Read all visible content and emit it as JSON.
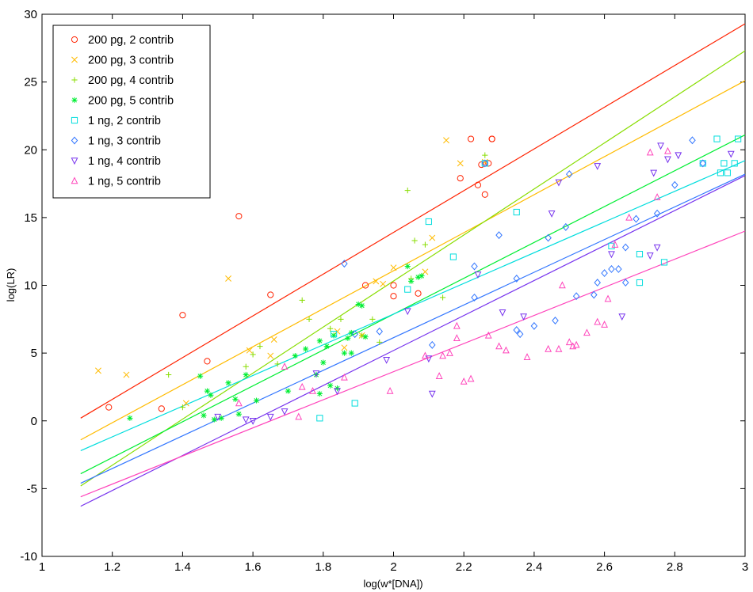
{
  "chart_data": {
    "type": "scatter",
    "title": "",
    "xlabel": "log(w*[DNA])",
    "ylabel": "log(LR)",
    "xlim": [
      1,
      3
    ],
    "ylim": [
      -10,
      30
    ],
    "xticks": [
      "1",
      "1.2",
      "1.4",
      "1.6",
      "1.8",
      "2",
      "2.2",
      "2.4",
      "2.6",
      "2.8",
      "3"
    ],
    "yticks": [
      "-10",
      "-5",
      "0",
      "5",
      "10",
      "15",
      "20",
      "25",
      "30"
    ],
    "grid": false,
    "legend_position": "top-left",
    "series": [
      {
        "name": "200 pg, 2 contrib",
        "color": "#ff2200",
        "marker": "circle",
        "points": [
          [
            1.19,
            1.0
          ],
          [
            1.34,
            0.9
          ],
          [
            1.4,
            7.8
          ],
          [
            1.47,
            4.4
          ],
          [
            1.56,
            15.1
          ],
          [
            1.65,
            9.3
          ],
          [
            1.92,
            10.0
          ],
          [
            2.0,
            10.0
          ],
          [
            2.0,
            9.2
          ],
          [
            2.07,
            9.4
          ],
          [
            2.19,
            17.9
          ],
          [
            2.22,
            20.8
          ],
          [
            2.24,
            17.4
          ],
          [
            2.25,
            18.9
          ],
          [
            2.26,
            16.7
          ],
          [
            2.27,
            19.0
          ],
          [
            2.28,
            20.8
          ],
          [
            2.28,
            20.8
          ]
        ],
        "fit": [
          [
            1.11,
            0.2
          ],
          [
            3.0,
            29.3
          ]
        ]
      },
      {
        "name": "200 pg, 3 contrib",
        "color": "#ffbb00",
        "marker": "x",
        "points": [
          [
            1.16,
            3.7
          ],
          [
            1.24,
            3.4
          ],
          [
            1.41,
            1.3
          ],
          [
            1.53,
            10.5
          ],
          [
            1.59,
            5.2
          ],
          [
            1.65,
            4.8
          ],
          [
            1.66,
            6.0
          ],
          [
            1.84,
            6.6
          ],
          [
            1.86,
            5.4
          ],
          [
            1.91,
            6.3
          ],
          [
            1.95,
            10.3
          ],
          [
            1.97,
            10.1
          ],
          [
            2.0,
            11.3
          ],
          [
            2.09,
            11.0
          ],
          [
            2.11,
            13.5
          ],
          [
            2.15,
            20.7
          ],
          [
            2.19,
            19.0
          ],
          [
            2.26,
            19.1
          ]
        ],
        "fit": [
          [
            1.11,
            -1.4
          ],
          [
            3.0,
            25.1
          ]
        ]
      },
      {
        "name": "200 pg, 4 contrib",
        "color": "#88dd00",
        "marker": "plus",
        "points": [
          [
            1.36,
            3.4
          ],
          [
            1.4,
            1.0
          ],
          [
            1.58,
            4.0
          ],
          [
            1.6,
            4.9
          ],
          [
            1.62,
            5.5
          ],
          [
            1.67,
            4.2
          ],
          [
            1.74,
            8.9
          ],
          [
            1.76,
            7.5
          ],
          [
            1.82,
            6.8
          ],
          [
            1.85,
            7.5
          ],
          [
            1.91,
            6.3
          ],
          [
            1.94,
            7.5
          ],
          [
            1.96,
            5.8
          ],
          [
            2.04,
            17.0
          ],
          [
            2.05,
            10.5
          ],
          [
            2.06,
            13.3
          ],
          [
            2.09,
            13.0
          ],
          [
            2.14,
            9.1
          ],
          [
            2.26,
            19.6
          ]
        ],
        "fit": [
          [
            1.11,
            -4.8
          ],
          [
            3.0,
            27.3
          ]
        ]
      },
      {
        "name": "200 pg, 5 contrib",
        "color": "#00ee33",
        "marker": "star",
        "points": [
          [
            1.25,
            0.2
          ],
          [
            1.45,
            3.3
          ],
          [
            1.46,
            0.4
          ],
          [
            1.47,
            2.2
          ],
          [
            1.48,
            1.9
          ],
          [
            1.49,
            0.1
          ],
          [
            1.51,
            0.2
          ],
          [
            1.53,
            2.8
          ],
          [
            1.55,
            1.6
          ],
          [
            1.56,
            0.5
          ],
          [
            1.58,
            3.4
          ],
          [
            1.61,
            1.5
          ],
          [
            1.7,
            2.2
          ],
          [
            1.72,
            4.8
          ],
          [
            1.75,
            5.3
          ],
          [
            1.78,
            3.4
          ],
          [
            1.79,
            5.9
          ],
          [
            1.79,
            2.0
          ],
          [
            1.8,
            4.3
          ],
          [
            1.81,
            5.5
          ],
          [
            1.82,
            2.6
          ],
          [
            1.83,
            6.3
          ],
          [
            1.84,
            2.4
          ],
          [
            1.86,
            5.0
          ],
          [
            1.87,
            6.1
          ],
          [
            1.88,
            5.0
          ],
          [
            1.88,
            6.5
          ],
          [
            1.9,
            8.6
          ],
          [
            1.91,
            8.5
          ],
          [
            1.92,
            6.2
          ],
          [
            2.04,
            11.4
          ],
          [
            2.05,
            10.3
          ],
          [
            2.07,
            10.6
          ],
          [
            2.08,
            10.7
          ]
        ],
        "fit": [
          [
            1.11,
            -3.9
          ],
          [
            3.0,
            21.1
          ]
        ]
      },
      {
        "name": "1 ng, 2 contrib",
        "color": "#00dddd",
        "marker": "square",
        "points": [
          [
            1.79,
            0.2
          ],
          [
            1.83,
            6.4
          ],
          [
            1.89,
            1.3
          ],
          [
            2.04,
            9.7
          ],
          [
            2.1,
            14.7
          ],
          [
            2.17,
            12.1
          ],
          [
            2.26,
            19.0
          ],
          [
            2.35,
            15.4
          ],
          [
            2.62,
            12.9
          ],
          [
            2.7,
            12.3
          ],
          [
            2.7,
            10.2
          ],
          [
            2.77,
            11.7
          ],
          [
            2.88,
            19.0
          ],
          [
            2.92,
            20.8
          ],
          [
            2.93,
            18.3
          ],
          [
            2.94,
            19.0
          ],
          [
            2.95,
            18.3
          ],
          [
            2.97,
            19.0
          ],
          [
            2.98,
            20.8
          ]
        ],
        "fit": [
          [
            1.11,
            -2.2
          ],
          [
            3.0,
            19.2
          ]
        ]
      },
      {
        "name": "1 ng, 3 contrib",
        "color": "#3377ff",
        "marker": "diamond",
        "points": [
          [
            1.86,
            11.6
          ],
          [
            1.89,
            6.4
          ],
          [
            1.96,
            6.6
          ],
          [
            2.11,
            5.6
          ],
          [
            2.23,
            9.1
          ],
          [
            2.23,
            11.4
          ],
          [
            2.26,
            19.0
          ],
          [
            2.3,
            13.7
          ],
          [
            2.35,
            10.5
          ],
          [
            2.35,
            6.7
          ],
          [
            2.36,
            6.4
          ],
          [
            2.4,
            7.0
          ],
          [
            2.44,
            13.5
          ],
          [
            2.46,
            7.4
          ],
          [
            2.49,
            14.3
          ],
          [
            2.5,
            18.2
          ],
          [
            2.52,
            9.2
          ],
          [
            2.57,
            9.3
          ],
          [
            2.58,
            10.2
          ],
          [
            2.6,
            10.9
          ],
          [
            2.62,
            11.2
          ],
          [
            2.64,
            11.2
          ],
          [
            2.66,
            10.2
          ],
          [
            2.66,
            12.8
          ],
          [
            2.69,
            14.9
          ],
          [
            2.75,
            15.3
          ],
          [
            2.8,
            17.4
          ],
          [
            2.85,
            20.7
          ],
          [
            2.88,
            19.0
          ]
        ],
        "fit": [
          [
            1.11,
            -4.6
          ],
          [
            3.0,
            18.2
          ]
        ]
      },
      {
        "name": "1 ng, 4 contrib",
        "color": "#7733ee",
        "marker": "triangle-down",
        "points": [
          [
            1.5,
            0.3
          ],
          [
            1.58,
            0.1
          ],
          [
            1.6,
            0.0
          ],
          [
            1.65,
            0.3
          ],
          [
            1.69,
            0.7
          ],
          [
            1.78,
            3.5
          ],
          [
            1.84,
            2.2
          ],
          [
            1.98,
            4.5
          ],
          [
            2.04,
            8.1
          ],
          [
            2.1,
            4.6
          ],
          [
            2.11,
            2.0
          ],
          [
            2.24,
            10.8
          ],
          [
            2.31,
            8.0
          ],
          [
            2.37,
            7.7
          ],
          [
            2.45,
            15.3
          ],
          [
            2.47,
            17.6
          ],
          [
            2.58,
            18.8
          ],
          [
            2.62,
            12.3
          ],
          [
            2.65,
            7.7
          ],
          [
            2.73,
            12.2
          ],
          [
            2.74,
            18.3
          ],
          [
            2.75,
            12.8
          ],
          [
            2.76,
            20.3
          ],
          [
            2.78,
            19.3
          ],
          [
            2.81,
            19.6
          ],
          [
            2.96,
            19.7
          ]
        ],
        "fit": [
          [
            1.11,
            -6.3
          ],
          [
            3.0,
            18.1
          ]
        ]
      },
      {
        "name": "1 ng, 5 contrib",
        "color": "#ff44bb",
        "marker": "triangle",
        "points": [
          [
            1.56,
            1.3
          ],
          [
            1.69,
            4.0
          ],
          [
            1.73,
            0.3
          ],
          [
            1.74,
            2.5
          ],
          [
            1.77,
            2.2
          ],
          [
            1.86,
            3.2
          ],
          [
            1.99,
            2.2
          ],
          [
            2.09,
            4.8
          ],
          [
            2.13,
            3.3
          ],
          [
            2.14,
            4.8
          ],
          [
            2.16,
            5.0
          ],
          [
            2.18,
            6.1
          ],
          [
            2.18,
            7.0
          ],
          [
            2.2,
            2.9
          ],
          [
            2.22,
            3.1
          ],
          [
            2.27,
            6.3
          ],
          [
            2.3,
            5.5
          ],
          [
            2.32,
            5.2
          ],
          [
            2.38,
            4.7
          ],
          [
            2.44,
            5.3
          ],
          [
            2.47,
            5.3
          ],
          [
            2.48,
            10.0
          ],
          [
            2.5,
            5.8
          ],
          [
            2.51,
            5.5
          ],
          [
            2.52,
            5.6
          ],
          [
            2.55,
            6.5
          ],
          [
            2.58,
            7.3
          ],
          [
            2.6,
            7.1
          ],
          [
            2.61,
            9.0
          ],
          [
            2.63,
            13.0
          ],
          [
            2.67,
            15.0
          ],
          [
            2.73,
            19.8
          ],
          [
            2.75,
            16.5
          ],
          [
            2.78,
            19.9
          ]
        ],
        "fit": [
          [
            1.11,
            -5.6
          ],
          [
            3.0,
            14.0
          ]
        ]
      }
    ]
  }
}
